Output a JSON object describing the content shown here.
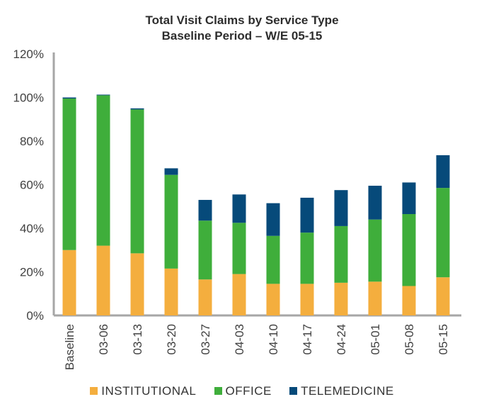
{
  "chart_data": {
    "type": "bar",
    "stacked": true,
    "title": "Total Visit Claims by Service Type",
    "subtitle": "Baseline Period – W/E 05-15",
    "categories": [
      "Baseline",
      "03-06",
      "03-13",
      "03-20",
      "03-27",
      "04-03",
      "04-10",
      "04-17",
      "04-24",
      "05-01",
      "05-08",
      "05-15"
    ],
    "series": [
      {
        "name": "INSTITUTIONAL",
        "color": "#F4AE3E",
        "values": [
          30,
          32,
          28.5,
          21.5,
          16.5,
          19,
          14.5,
          14.5,
          15,
          15.5,
          13.5,
          17.5
        ]
      },
      {
        "name": "OFFICE",
        "color": "#3FAE3B",
        "values": [
          69.5,
          69,
          66,
          43,
          27,
          23.5,
          22,
          23.5,
          26,
          28.5,
          33,
          41
        ]
      },
      {
        "name": "TELEMEDICINE",
        "color": "#064A7A",
        "values": [
          0.5,
          0.3,
          0.5,
          3,
          9.5,
          13,
          15,
          16,
          16.5,
          15.5,
          14.5,
          15
        ]
      }
    ],
    "yticks": [
      "0%",
      "20%",
      "40%",
      "60%",
      "80%",
      "100%",
      "120%"
    ],
    "ylim": [
      0,
      120
    ],
    "grid": false,
    "legend_position": "bottom"
  }
}
